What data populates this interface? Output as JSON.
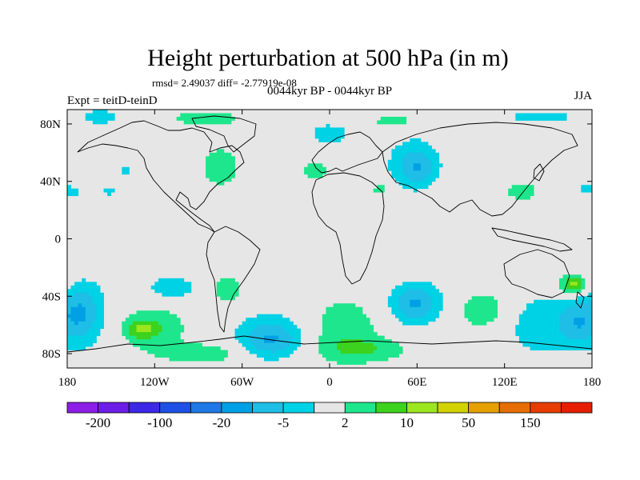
{
  "chart_data": {
    "type": "heatmap",
    "title": "Height perturbation at 500 hPa (in m)",
    "stats_line": "rmsd= 2.49037 diff= -2.77919e-08",
    "subtitle": "0044kyr BP - 0044kyr BP",
    "left_label": "Expt = teitD-teinD",
    "right_label": "JJA",
    "xlim": [
      -180,
      180
    ],
    "ylim": [
      -90,
      90
    ],
    "x_ticks": [
      {
        "value": -180,
        "label": "180"
      },
      {
        "value": -120,
        "label": "120W"
      },
      {
        "value": -60,
        "label": "60W"
      },
      {
        "value": 0,
        "label": "0"
      },
      {
        "value": 60,
        "label": "60E"
      },
      {
        "value": 120,
        "label": "120E"
      },
      {
        "value": 180,
        "label": "180"
      }
    ],
    "y_ticks": [
      {
        "value": 80,
        "label": "80N"
      },
      {
        "value": 40,
        "label": "40N"
      },
      {
        "value": 0,
        "label": "0"
      },
      {
        "value": -40,
        "label": "40S"
      },
      {
        "value": -80,
        "label": "80S"
      }
    ],
    "levels": [
      -200,
      -150,
      -100,
      -50,
      -20,
      -10,
      -5,
      -2,
      2,
      5,
      10,
      20,
      50,
      100,
      150,
      200
    ],
    "colors": [
      "#8c1ee6",
      "#6a1ee6",
      "#3c28e6",
      "#1e50e6",
      "#1e78e6",
      "#00a0e6",
      "#1ebee6",
      "#00d2e6",
      "#e6e6e6",
      "#1ee68c",
      "#3cd21e",
      "#9be61e",
      "#d2d200",
      "#e6a000",
      "#e66e00",
      "#e63c00",
      "#e61e00"
    ],
    "colorbar_labels": [
      {
        "after_level": -200,
        "label": "-200"
      },
      {
        "after_level": -100,
        "label": "-100"
      },
      {
        "after_level": -20,
        "label": "-20"
      },
      {
        "after_level": -5,
        "label": "-5"
      },
      {
        "after_level": 2,
        "label": "2"
      },
      {
        "after_level": 10,
        "label": "10"
      },
      {
        "after_level": 50,
        "label": "50"
      },
      {
        "after_level": 150,
        "label": "150"
      }
    ],
    "anomalies": [
      {
        "lon": -157,
        "lat": 85,
        "rlon": 12,
        "rlat": 5,
        "value": -4
      },
      {
        "lon": -85,
        "lat": 84,
        "rlon": 30,
        "rlat": 7,
        "value": 3
      },
      {
        "lon": -75,
        "lat": 50,
        "rlon": 17,
        "rlat": 18,
        "value": 3
      },
      {
        "lon": -140,
        "lat": 48,
        "rlon": 5,
        "rlat": 3,
        "value": -3
      },
      {
        "lon": -175,
        "lat": 33,
        "rlon": 6,
        "rlat": 4,
        "value": -3
      },
      {
        "lon": -152,
        "lat": 33,
        "rlon": 6,
        "rlat": 3,
        "value": -3
      },
      {
        "lon": -10,
        "lat": 48,
        "rlon": 12,
        "rlat": 8,
        "value": 3
      },
      {
        "lon": 0,
        "lat": 73,
        "rlon": 13,
        "rlat": 7,
        "value": -4
      },
      {
        "lon": 45,
        "lat": 82,
        "rlon": 20,
        "rlat": 6,
        "value": 3
      },
      {
        "lon": 35,
        "lat": 35,
        "rlon": 8,
        "rlat": 6,
        "value": 3
      },
      {
        "lon": 58,
        "lat": 52,
        "rlon": 20,
        "rlat": 20,
        "value": -4
      },
      {
        "lon": 60,
        "lat": 50,
        "rlon": 9,
        "rlat": 9,
        "value": -7
      },
      {
        "lon": 145,
        "lat": 85,
        "rlon": 30,
        "rlat": 5,
        "value": -3
      },
      {
        "lon": 132,
        "lat": 33,
        "rlon": 14,
        "rlat": 8,
        "value": 3
      },
      {
        "lon": 175,
        "lat": 35,
        "rlon": 6,
        "rlat": 5,
        "value": -3
      },
      {
        "lon": -168,
        "lat": -52,
        "rlon": 18,
        "rlat": 25,
        "value": -4
      },
      {
        "lon": -172,
        "lat": -52,
        "rlon": 10,
        "rlat": 14,
        "value": -7
      },
      {
        "lon": -122,
        "lat": -62,
        "rlon": 26,
        "rlat": 16,
        "value": 4
      },
      {
        "lon": -128,
        "lat": -63,
        "rlon": 9,
        "rlat": 5,
        "value": 9
      },
      {
        "lon": -108,
        "lat": -34,
        "rlon": 18,
        "rlat": 8,
        "value": -4
      },
      {
        "lon": -70,
        "lat": -36,
        "rlon": 14,
        "rlat": 14,
        "value": 3
      },
      {
        "lon": -42,
        "lat": -68,
        "rlon": 28,
        "rlat": 18,
        "value": -4
      },
      {
        "lon": -40,
        "lat": -70,
        "rlon": 14,
        "rlat": 9,
        "value": -7
      },
      {
        "lon": -85,
        "lat": -80,
        "rlon": 30,
        "rlat": 7,
        "value": 4
      },
      {
        "lon": 10,
        "lat": -63,
        "rlon": 24,
        "rlat": 23,
        "value": 4
      },
      {
        "lon": 25,
        "lat": -77,
        "rlon": 30,
        "rlat": 8,
        "value": 4
      },
      {
        "lon": 60,
        "lat": -45,
        "rlon": 22,
        "rlat": 17,
        "value": -4
      },
      {
        "lon": 58,
        "lat": -45,
        "rlon": 11,
        "rlat": 9,
        "value": -7
      },
      {
        "lon": 105,
        "lat": -50,
        "rlon": 18,
        "rlat": 14,
        "value": 4
      },
      {
        "lon": 150,
        "lat": -60,
        "rlon": 30,
        "rlat": 22,
        "value": -4
      },
      {
        "lon": 170,
        "lat": -58,
        "rlon": 10,
        "rlat": 12,
        "value": -7
      },
      {
        "lon": 165,
        "lat": -32,
        "rlon": 14,
        "rlat": 9,
        "value": 4
      },
      {
        "lon": 168,
        "lat": -32,
        "rlon": 5,
        "rlat": 4,
        "value": 9
      }
    ]
  }
}
